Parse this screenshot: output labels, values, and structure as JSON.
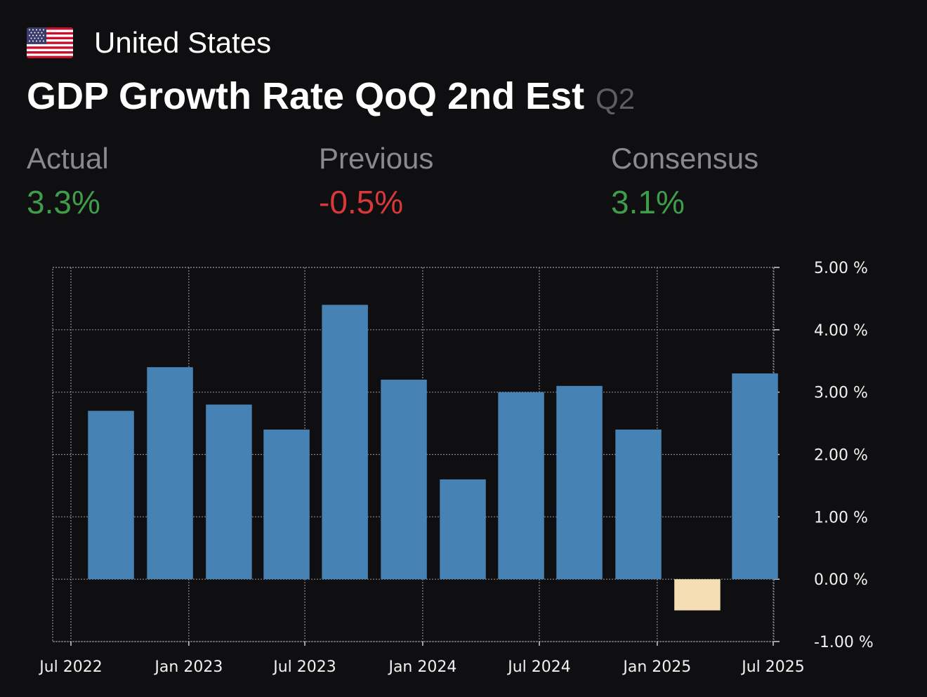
{
  "header": {
    "country": "United States",
    "flag_icon": "us-flag-icon",
    "title": "GDP Growth Rate QoQ 2nd Est",
    "period": "Q2"
  },
  "stats": {
    "actual": {
      "label": "Actual",
      "value": "3.3%",
      "color": "#3f9c4a"
    },
    "previous": {
      "label": "Previous",
      "value": "-0.5%",
      "color": "#d9383a"
    },
    "consensus": {
      "label": "Consensus",
      "value": "3.1%",
      "color": "#3f9c4a"
    }
  },
  "chart_data": {
    "type": "bar",
    "series": [
      {
        "name": "GDP Growth Rate QoQ",
        "points": [
          {
            "date": "2022-07",
            "value": 2.7
          },
          {
            "date": "2022-10",
            "value": 3.4
          },
          {
            "date": "2023-01",
            "value": 2.8
          },
          {
            "date": "2023-04",
            "value": 2.4
          },
          {
            "date": "2023-07",
            "value": 4.4
          },
          {
            "date": "2023-10",
            "value": 3.2
          },
          {
            "date": "2024-01",
            "value": 1.6
          },
          {
            "date": "2024-04",
            "value": 3.0
          },
          {
            "date": "2024-07",
            "value": 3.1
          },
          {
            "date": "2024-10",
            "value": 2.4
          },
          {
            "date": "2025-01",
            "value": -0.5
          },
          {
            "date": "2025-04",
            "value": 3.3
          }
        ]
      }
    ],
    "x_ticks": [
      "Jul 2022",
      "Jan 2023",
      "Jul 2023",
      "Jan 2024",
      "Jul 2024",
      "Jan 2025",
      "Jul 2025"
    ],
    "y_ticks": [
      "5.00 %",
      "4.00 %",
      "3.00 %",
      "2.00 %",
      "1.00 %",
      "0.00 %",
      "-1.00 %"
    ],
    "ylim": [
      -1,
      5
    ],
    "positive_color": "#4682b4",
    "negative_color": "#f5deb3",
    "grid": true,
    "axis_position": "right"
  }
}
